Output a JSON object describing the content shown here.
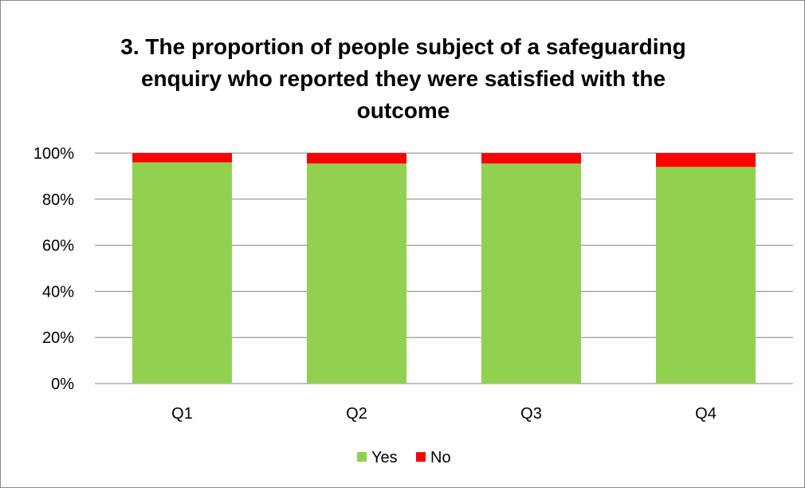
{
  "chart_data": {
    "type": "bar",
    "stacked": true,
    "title": "3. The proportion of people subject of a safeguarding enquiry who reported they were satisfied with the outcome",
    "categories": [
      "Q1",
      "Q2",
      "Q3",
      "Q4"
    ],
    "series": [
      {
        "name": "Yes",
        "color": "#92d050",
        "values": [
          96,
          95.5,
          95.5,
          94
        ]
      },
      {
        "name": "No",
        "color": "#ff0000",
        "values": [
          4,
          4.5,
          4.5,
          6
        ]
      }
    ],
    "ylim": [
      0,
      100
    ],
    "yticks": [
      "0%",
      "20%",
      "40%",
      "60%",
      "80%",
      "100%"
    ],
    "ytick_values": [
      0,
      20,
      40,
      60,
      80,
      100
    ],
    "grid": true,
    "legend_position": "bottom",
    "xlabel": "",
    "ylabel": ""
  }
}
